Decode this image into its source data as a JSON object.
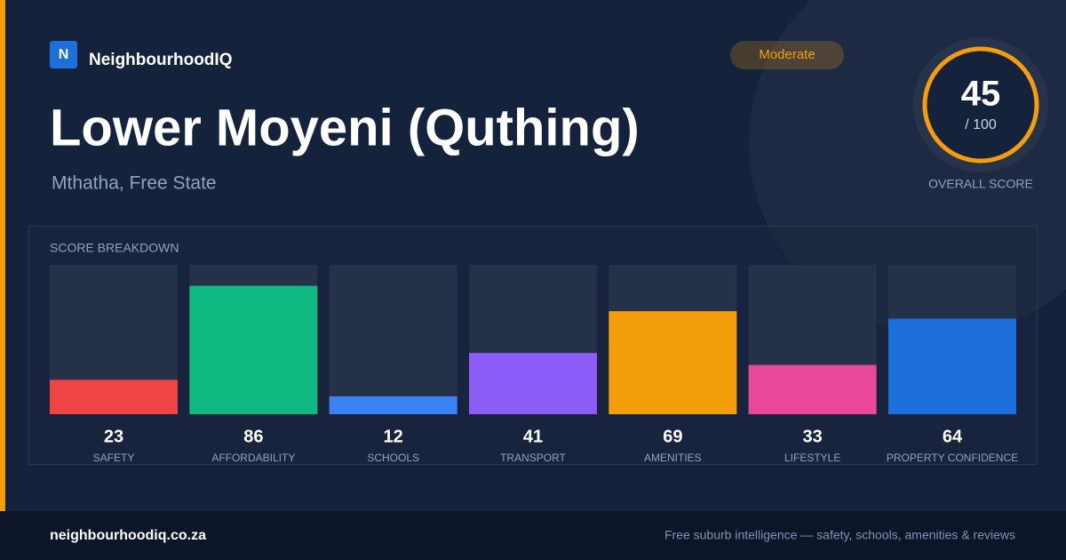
{
  "brand": {
    "logo": "N",
    "name": "NeighbourhoodIQ"
  },
  "badge": "Moderate",
  "title": "Lower Moyeni (Quthing)",
  "subtitle": "Mthatha, Free State",
  "overall": {
    "score": 45,
    "scale": "/ 100",
    "label": "OVERALL SCORE"
  },
  "breakdown": {
    "title": "SCORE BREAKDOWN",
    "ylim": [
      0,
      100
    ],
    "categories": [
      "SAFETY",
      "AFFORDABILITY",
      "SCHOOLS",
      "TRANSPORT",
      "AMENITIES",
      "LIFESTYLE",
      "PROPERTY CONFIDENCE"
    ],
    "values": [
      23,
      86,
      12,
      41,
      69,
      33,
      64
    ],
    "colors": [
      "#ef4444",
      "#10b981",
      "#3b82f6",
      "#8b5cf6",
      "#f59e0b",
      "#ec4899",
      "#1d6fdb"
    ]
  },
  "footer": {
    "site": "neighbourhoodiq.co.za",
    "tagline": "Free suburb intelligence — safety, schools, amenities & reviews"
  }
}
